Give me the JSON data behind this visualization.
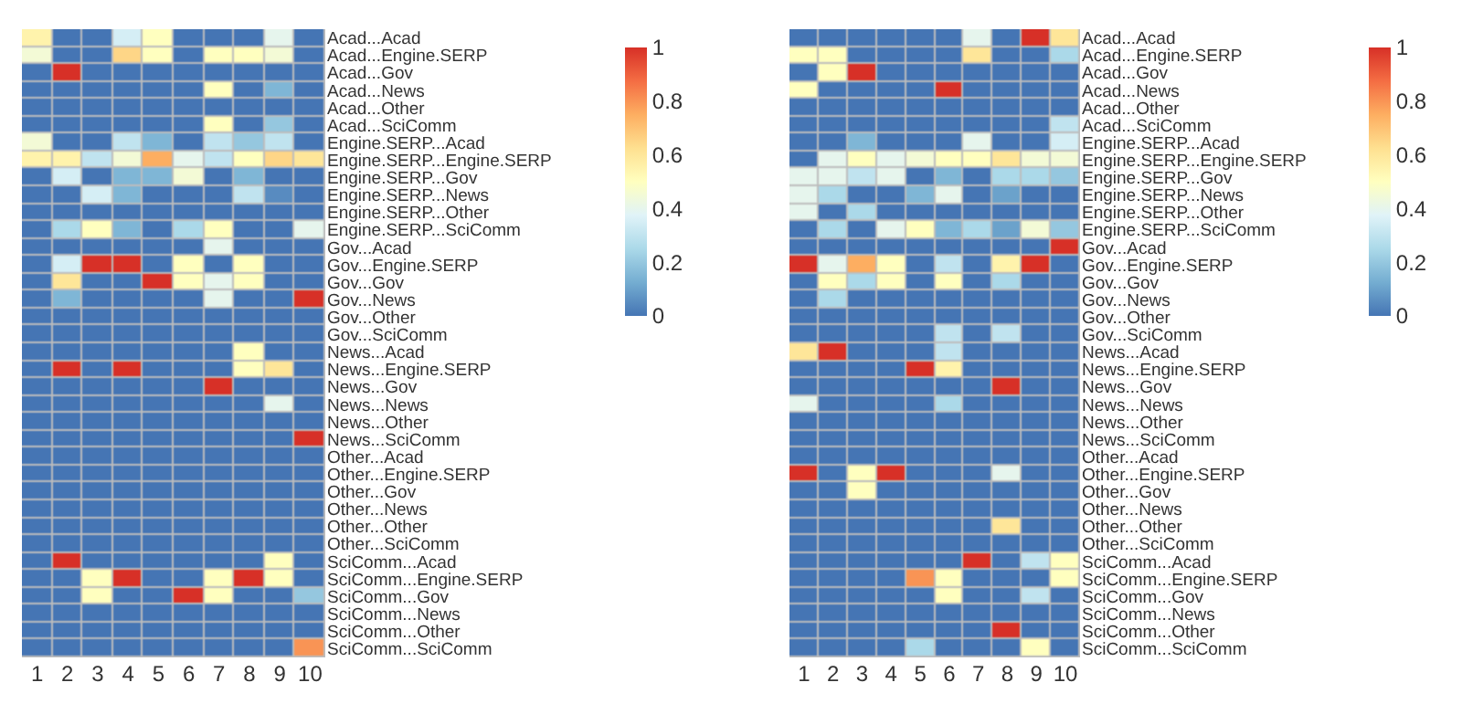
{
  "chart_data": [
    {
      "type": "heatmap",
      "categories": [
        "1",
        "2",
        "3",
        "4",
        "5",
        "6",
        "7",
        "8",
        "9",
        "10"
      ],
      "y_categories": [
        "Acad...Acad",
        "Acad...Engine.SERP",
        "Acad...Gov",
        "Acad...News",
        "Acad...Other",
        "Acad...SciComm",
        "Engine.SERP...Acad",
        "Engine.SERP...Engine.SERP",
        "Engine.SERP...Gov",
        "Engine.SERP...News",
        "Engine.SERP...Other",
        "Engine.SERP...SciComm",
        "Gov...Acad",
        "Gov...Engine.SERP",
        "Gov...Gov",
        "Gov...News",
        "Gov...Other",
        "Gov...SciComm",
        "News...Acad",
        "News...Engine.SERP",
        "News...Gov",
        "News...News",
        "News...Other",
        "News...SciComm",
        "Other...Acad",
        "Other...Engine.SERP",
        "Other...Gov",
        "Other...News",
        "Other...Other",
        "Other...SciComm",
        "SciComm...Acad",
        "SciComm...Engine.SERP",
        "SciComm...Gov",
        "SciComm...News",
        "SciComm...Other",
        "SciComm...SciComm"
      ],
      "cells": [
        [
          0.55,
          0,
          0,
          0.35,
          0.5,
          0,
          0,
          0,
          0.4,
          0
        ],
        [
          0.45,
          0,
          0,
          0.65,
          0.5,
          0,
          0.5,
          0.5,
          0.45,
          0
        ],
        [
          0,
          1,
          0,
          0,
          0,
          0,
          0,
          0,
          0,
          0
        ],
        [
          0,
          0,
          0,
          0,
          0,
          0,
          0.5,
          0,
          0.15,
          0
        ],
        [
          0,
          0,
          0,
          0,
          0,
          0,
          0,
          0,
          0,
          0
        ],
        [
          0,
          0,
          0,
          0,
          0,
          0,
          0.5,
          0,
          0.2,
          0
        ],
        [
          0.45,
          0,
          0,
          0.3,
          0.15,
          0,
          0.3,
          0.2,
          0.3,
          0
        ],
        [
          0.55,
          0.55,
          0.3,
          0.45,
          0.75,
          0.4,
          0.3,
          0.5,
          0.65,
          0.6
        ],
        [
          0,
          0.35,
          0,
          0.15,
          0.15,
          0.45,
          0,
          0.15,
          0,
          0
        ],
        [
          0,
          0,
          0.35,
          0.15,
          0,
          0,
          0,
          0.3,
          0.05,
          0
        ],
        [
          0,
          0,
          0,
          0,
          0,
          0,
          0,
          0,
          0,
          0
        ],
        [
          0,
          0.25,
          0.5,
          0.15,
          0,
          0.25,
          0.5,
          0,
          0,
          0.4
        ],
        [
          0,
          0,
          0,
          0,
          0,
          0,
          0.4,
          0,
          0,
          0
        ],
        [
          0,
          0.35,
          1,
          1,
          0,
          0.5,
          0,
          0.5,
          0,
          0
        ],
        [
          0,
          0.6,
          0,
          0,
          1,
          0.5,
          0.4,
          0.5,
          0,
          0
        ],
        [
          0,
          0.15,
          0,
          0,
          0,
          0,
          0.4,
          0,
          0,
          1
        ],
        [
          0,
          0,
          0,
          0,
          0,
          0,
          0,
          0,
          0,
          0
        ],
        [
          0,
          0,
          0,
          0,
          0,
          0,
          0,
          0,
          0,
          0
        ],
        [
          0,
          0,
          0,
          0,
          0,
          0,
          0,
          0.5,
          0,
          0
        ],
        [
          0,
          1,
          0,
          1,
          0,
          0,
          0,
          0.5,
          0.6,
          0
        ],
        [
          0,
          0,
          0,
          0,
          0,
          0,
          1,
          0,
          0,
          0
        ],
        [
          0,
          0,
          0,
          0,
          0,
          0,
          0,
          0,
          0.4,
          0
        ],
        [
          0,
          0,
          0,
          0,
          0,
          0,
          0,
          0,
          0,
          0
        ],
        [
          0,
          0,
          0,
          0,
          0,
          0,
          0,
          0,
          0,
          1
        ],
        [
          0,
          0,
          0,
          0,
          0,
          0,
          0,
          0,
          0,
          0
        ],
        [
          0,
          0,
          0,
          0,
          0,
          0,
          0,
          0,
          0,
          0
        ],
        [
          0,
          0,
          0,
          0,
          0,
          0,
          0,
          0,
          0,
          0
        ],
        [
          0,
          0,
          0,
          0,
          0,
          0,
          0,
          0,
          0,
          0
        ],
        [
          0,
          0,
          0,
          0,
          0,
          0,
          0,
          0,
          0,
          0
        ],
        [
          0,
          0,
          0,
          0,
          0,
          0,
          0,
          0,
          0,
          0
        ],
        [
          0,
          1,
          0,
          0,
          0,
          0,
          0,
          0,
          0.5,
          0
        ],
        [
          0,
          0,
          0.5,
          1,
          0,
          0,
          0.5,
          1,
          0.5,
          0
        ],
        [
          0,
          0,
          0.5,
          0,
          0,
          1,
          0.5,
          0,
          0,
          0.2
        ],
        [
          0,
          0,
          0,
          0,
          0,
          0,
          0,
          0,
          0,
          0
        ],
        [
          0,
          0,
          0,
          0,
          0,
          0,
          0,
          0,
          0,
          0
        ],
        [
          0,
          0,
          0,
          0,
          0,
          0,
          0,
          0,
          0,
          0.8
        ]
      ],
      "clim": [
        0,
        1
      ],
      "cticks": [
        0,
        0.2,
        0.4,
        0.6,
        0.8,
        1
      ]
    },
    {
      "type": "heatmap",
      "categories": [
        "1",
        "2",
        "3",
        "4",
        "5",
        "6",
        "7",
        "8",
        "9",
        "10"
      ],
      "y_categories": [
        "Acad...Acad",
        "Acad...Engine.SERP",
        "Acad...Gov",
        "Acad...News",
        "Acad...Other",
        "Acad...SciComm",
        "Engine.SERP...Acad",
        "Engine.SERP...Engine.SERP",
        "Engine.SERP...Gov",
        "Engine.SERP...News",
        "Engine.SERP...Other",
        "Engine.SERP...SciComm",
        "Gov...Acad",
        "Gov...Engine.SERP",
        "Gov...Gov",
        "Gov...News",
        "Gov...Other",
        "Gov...SciComm",
        "News...Acad",
        "News...Engine.SERP",
        "News...Gov",
        "News...News",
        "News...Other",
        "News...SciComm",
        "Other...Acad",
        "Other...Engine.SERP",
        "Other...Gov",
        "Other...News",
        "Other...Other",
        "Other...SciComm",
        "SciComm...Acad",
        "SciComm...Engine.SERP",
        "SciComm...Gov",
        "SciComm...News",
        "SciComm...Other",
        "SciComm...SciComm"
      ],
      "cells": [
        [
          0,
          0,
          0,
          0,
          0,
          0,
          0.4,
          0,
          1,
          0.6
        ],
        [
          0.5,
          0.5,
          0,
          0,
          0,
          0,
          0.6,
          0,
          0,
          0.25
        ],
        [
          0,
          0.5,
          1,
          0,
          0,
          0,
          0,
          0,
          0,
          0
        ],
        [
          0.5,
          0,
          0,
          0,
          0,
          1,
          0,
          0,
          0,
          0
        ],
        [
          0,
          0,
          0,
          0,
          0,
          0,
          0,
          0,
          0,
          0
        ],
        [
          0,
          0,
          0,
          0,
          0,
          0,
          0,
          0,
          0,
          0.3
        ],
        [
          0,
          0,
          0.15,
          0,
          0,
          0,
          0.4,
          0,
          0,
          0.35
        ],
        [
          0,
          0.4,
          0.5,
          0.4,
          0.45,
          0.5,
          0.5,
          0.6,
          0.45,
          0.45
        ],
        [
          0.4,
          0.4,
          0.3,
          0.4,
          0,
          0.15,
          0,
          0.25,
          0.25,
          0.2
        ],
        [
          0.4,
          0.25,
          0,
          0,
          0.15,
          0.4,
          0,
          0.1,
          0,
          0
        ],
        [
          0.4,
          0,
          0.25,
          0,
          0,
          0,
          0,
          0,
          0,
          0
        ],
        [
          0,
          0.25,
          0,
          0.4,
          0.5,
          0.15,
          0.25,
          0.1,
          0.45,
          0.2
        ],
        [
          0,
          0,
          0,
          0,
          0,
          0,
          0,
          0,
          0,
          1
        ],
        [
          1,
          0.4,
          0.75,
          0.5,
          0,
          0.3,
          0,
          0.55,
          1,
          0
        ],
        [
          0,
          0.5,
          0.25,
          0.5,
          0,
          0.5,
          0,
          0.25,
          0,
          0
        ],
        [
          0,
          0.25,
          0,
          0,
          0,
          0,
          0,
          0,
          0,
          0
        ],
        [
          0,
          0,
          0,
          0,
          0,
          0,
          0,
          0,
          0,
          0
        ],
        [
          0,
          0,
          0,
          0,
          0,
          0.3,
          0,
          0.3,
          0,
          0
        ],
        [
          0.6,
          1,
          0,
          0,
          0,
          0.3,
          0,
          0,
          0,
          0
        ],
        [
          0,
          0,
          0,
          0,
          1,
          0.55,
          0,
          0,
          0,
          0
        ],
        [
          0,
          0,
          0,
          0,
          0,
          0,
          0,
          1,
          0,
          0
        ],
        [
          0.4,
          0,
          0,
          0,
          0,
          0.25,
          0,
          0,
          0,
          0
        ],
        [
          0,
          0,
          0,
          0,
          0,
          0,
          0,
          0,
          0,
          0
        ],
        [
          0,
          0,
          0,
          0,
          0,
          0,
          0,
          0,
          0,
          0
        ],
        [
          0,
          0,
          0,
          0,
          0,
          0,
          0,
          0,
          0,
          0
        ],
        [
          1,
          0,
          0.5,
          1,
          0,
          0,
          0,
          0.4,
          0,
          0
        ],
        [
          0,
          0,
          0.5,
          0,
          0,
          0,
          0,
          0,
          0,
          0
        ],
        [
          0,
          0,
          0,
          0,
          0,
          0,
          0,
          0,
          0,
          0
        ],
        [
          0,
          0,
          0,
          0,
          0,
          0,
          0,
          0.6,
          0,
          0
        ],
        [
          0,
          0,
          0,
          0,
          0,
          0,
          0,
          0,
          0,
          0
        ],
        [
          0,
          0,
          0,
          0,
          0,
          0,
          1,
          0,
          0.3,
          0.5
        ],
        [
          0,
          0,
          0,
          0,
          0.8,
          0.5,
          0,
          0,
          0,
          0.5
        ],
        [
          0,
          0,
          0,
          0,
          0,
          0.5,
          0,
          0,
          0.3,
          0
        ],
        [
          0,
          0,
          0,
          0,
          0,
          0,
          0,
          0,
          0,
          0
        ],
        [
          0,
          0,
          0,
          0,
          0,
          0,
          0,
          1,
          0,
          0
        ],
        [
          0,
          0,
          0,
          0,
          0.25,
          0,
          0,
          0,
          0.5,
          0
        ]
      ],
      "clim": [
        0,
        1
      ],
      "cticks": [
        0,
        0.2,
        0.4,
        0.6,
        0.8,
        1
      ]
    }
  ]
}
